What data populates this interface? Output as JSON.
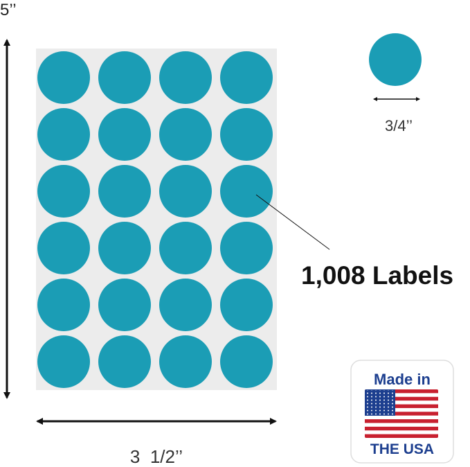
{
  "height_label": "5’’",
  "diameter_label": "3/4’’",
  "count_label": "1,008 Labels",
  "width_label": "3  1/2’’",
  "badge": {
    "top": "Made in",
    "bottom": "THE USA"
  }
}
